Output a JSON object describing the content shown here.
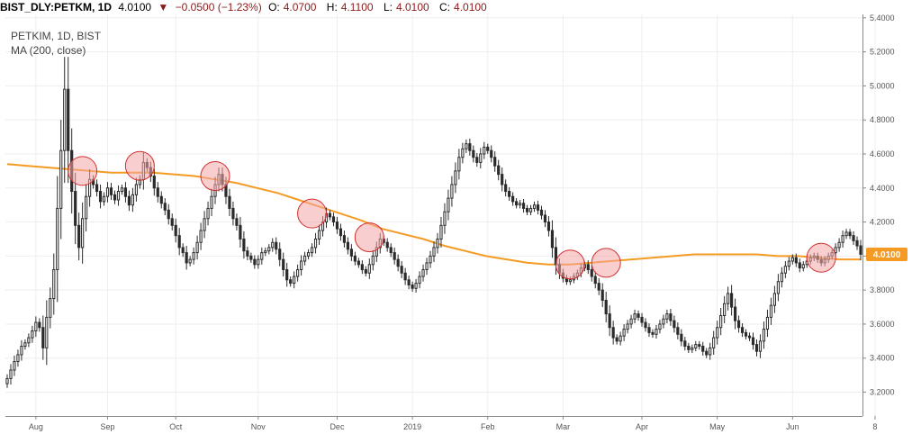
{
  "header": {
    "symbol": "BIST_DLY:PETKM, 1D",
    "last": "4.0100",
    "arrow": "▼",
    "change": "−0.0500 (−1.23%)",
    "o_label": "O:",
    "o_value": "4.0700",
    "h_label": "H:",
    "h_value": "4.1100",
    "l_label": "L:",
    "l_value": "4.0100",
    "c_label": "C:",
    "c_value": "4.0100"
  },
  "colors": {
    "up": "#26a69a",
    "down": "#ef5350",
    "candle": "#2b2b2b",
    "ma": "#f59a23",
    "highlight_fill": "#f4a6a6",
    "highlight_stroke": "#d32f2f",
    "price_tag": "#f59a23",
    "grid": "#eeeeee"
  },
  "chart_data": {
    "type": "candlestick",
    "legend": [
      "PETKIM, 1D, BIST",
      "MA (200, close)"
    ],
    "y_ticks": [
      "3.2000",
      "3.4000",
      "3.6000",
      "3.8000",
      "4.0000",
      "4.2000",
      "4.4000",
      "4.6000",
      "4.8000",
      "5.0000",
      "5.2000",
      "5.4000"
    ],
    "ylim": [
      3.06,
      5.42
    ],
    "x_tick_labels": [
      "Aug",
      "Sep",
      "Oct",
      "Nov",
      "Dec",
      "2019",
      "Feb",
      "Mar",
      "Apr",
      "May",
      "Jun",
      "8"
    ],
    "x_tick_index": [
      8,
      28,
      47,
      70,
      92,
      113,
      134,
      155,
      177,
      198,
      219,
      242
    ],
    "last_price_label": "4.0100",
    "last_price": 4.01,
    "close": [
      3.28,
      3.33,
      3.38,
      3.42,
      3.47,
      3.49,
      3.52,
      3.56,
      3.61,
      3.58,
      3.46,
      3.64,
      3.75,
      3.92,
      4.28,
      4.62,
      4.98,
      4.62,
      4.38,
      4.18,
      4.05,
      4.22,
      4.35,
      4.45,
      4.42,
      4.38,
      4.32,
      4.35,
      4.4,
      4.36,
      4.33,
      4.38,
      4.4,
      4.35,
      4.3,
      4.36,
      4.42,
      4.45,
      4.55,
      4.52,
      4.47,
      4.4,
      4.35,
      4.31,
      4.27,
      4.22,
      4.18,
      4.12,
      4.05,
      4.02,
      3.96,
      3.98,
      4.02,
      4.08,
      4.15,
      4.22,
      4.28,
      4.35,
      4.42,
      4.48,
      4.42,
      4.35,
      4.28,
      4.22,
      4.18,
      4.1,
      4.03,
      4.0,
      3.98,
      3.95,
      3.98,
      4.02,
      4.03,
      4.05,
      4.08,
      4.04,
      3.98,
      3.92,
      3.86,
      3.84,
      3.88,
      3.92,
      3.97,
      4.0,
      4.02,
      4.05,
      4.1,
      4.15,
      4.2,
      4.25,
      4.23,
      4.2,
      4.16,
      4.12,
      4.08,
      4.04,
      4.0,
      3.97,
      3.95,
      3.92,
      3.9,
      3.95,
      4.0,
      4.05,
      4.1,
      4.08,
      4.05,
      4.02,
      3.98,
      3.94,
      3.9,
      3.86,
      3.83,
      3.81,
      3.84,
      3.88,
      3.92,
      3.96,
      4.0,
      4.05,
      4.1,
      4.18,
      4.26,
      4.34,
      4.42,
      4.5,
      4.58,
      4.63,
      4.66,
      4.62,
      4.58,
      4.55,
      4.6,
      4.64,
      4.62,
      4.58,
      4.53,
      4.48,
      4.42,
      4.38,
      4.35,
      4.32,
      4.3,
      4.31,
      4.28,
      4.26,
      4.28,
      4.3,
      4.27,
      4.24,
      4.2,
      4.15,
      4.05,
      3.95,
      3.9,
      3.87,
      3.85,
      3.86,
      3.88,
      3.9,
      3.93,
      3.95,
      3.92,
      3.88,
      3.84,
      3.8,
      3.74,
      3.66,
      3.58,
      3.52,
      3.5,
      3.53,
      3.57,
      3.6,
      3.63,
      3.66,
      3.64,
      3.61,
      3.58,
      3.55,
      3.54,
      3.57,
      3.6,
      3.63,
      3.66,
      3.62,
      3.58,
      3.54,
      3.5,
      3.47,
      3.45,
      3.46,
      3.48,
      3.47,
      3.44,
      3.42,
      3.46,
      3.52,
      3.58,
      3.65,
      3.72,
      3.78,
      3.7,
      3.62,
      3.58,
      3.55,
      3.53,
      3.52,
      3.48,
      3.44,
      3.5,
      3.57,
      3.64,
      3.71,
      3.78,
      3.85,
      3.9,
      3.94,
      3.97,
      3.99,
      3.96,
      3.93,
      3.95,
      3.97,
      3.99,
      4.0,
      3.98,
      3.96,
      3.98,
      4.0,
      4.02,
      4.05,
      4.08,
      4.12,
      4.14,
      4.12,
      4.09,
      4.06,
      4.01
    ],
    "ma": [
      4.54,
      4.53,
      4.52,
      4.51,
      4.5,
      4.49,
      4.49,
      4.49,
      4.48,
      4.47,
      4.45,
      4.43,
      4.4,
      4.37,
      4.33,
      4.29,
      4.25,
      4.21,
      4.16,
      4.13,
      4.1,
      4.06,
      4.03,
      4.0,
      3.98,
      3.96,
      3.95,
      3.95,
      3.96,
      3.97,
      3.98,
      3.99,
      4.0,
      4.01,
      4.01,
      4.01,
      4.01,
      4.0,
      4.0,
      3.99,
      3.98,
      3.98
    ],
    "highlights": [
      {
        "i": 21,
        "price": 4.5
      },
      {
        "i": 37,
        "price": 4.53
      },
      {
        "i": 58,
        "price": 4.47
      },
      {
        "i": 85,
        "price": 4.25
      },
      {
        "i": 101,
        "price": 4.11
      },
      {
        "i": 157,
        "price": 3.95
      },
      {
        "i": 167,
        "price": 3.96
      },
      {
        "i": 227,
        "price": 3.99
      }
    ]
  }
}
